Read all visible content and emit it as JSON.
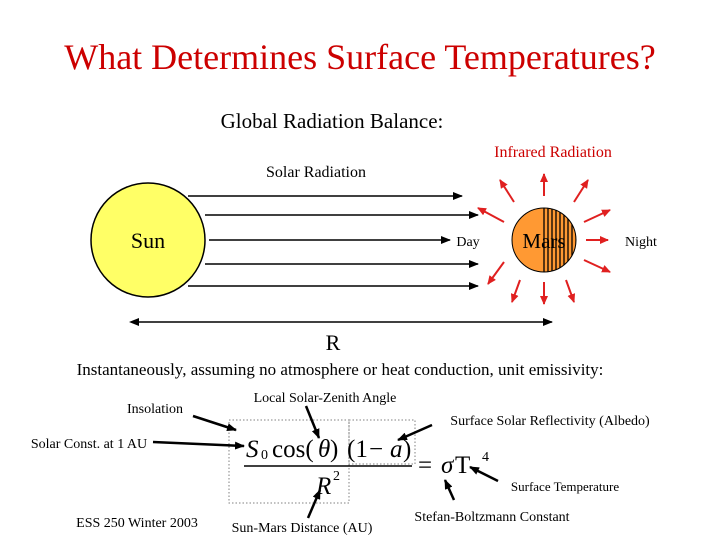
{
  "slide": {
    "title": "What Determines Surface Temperatures?",
    "subtitle": "Global Radiation Balance:",
    "infrared_label": "Infrared Radiation",
    "solar_label": "Solar Radiation",
    "sun_label": "Sun",
    "day_label": "Day",
    "mars_label": "Mars",
    "night_label": "Night",
    "distance_label": "R",
    "assumption_text": "Instantaneously, assuming no atmosphere or heat conduction, unit emissivity:",
    "footer": "ESS 250 Winter 2003"
  },
  "equation_labels": {
    "insolation": "Insolation",
    "zenith_angle": "Local Solar-Zenith Angle",
    "albedo": "Surface Solar Reflectivity (Albedo)",
    "solar_constant": "Solar Const. at 1 AU",
    "surface_temperature": "Surface Temperature",
    "sun_mars_distance": "Sun-Mars Distance  (AU)",
    "stefan_boltzmann": "Stefan-Boltzmann Constant"
  },
  "equation": {
    "S": "S",
    "sub0": "0",
    "cos": "cos(",
    "theta": "θ",
    "close": " )",
    "paren_open": "(1",
    "minus": "−",
    "a": "a",
    "paren_close": ")",
    "R": "R",
    "exp2": "2",
    "equals": "=",
    "sigma": "σ",
    "T": " T",
    "exp4": "4"
  },
  "colors": {
    "title": "#cc0000",
    "sun_fill": "#ffff66",
    "mars_fill": "#ff9933",
    "ir_arrow": "#e02020",
    "box_border": "#808080"
  }
}
